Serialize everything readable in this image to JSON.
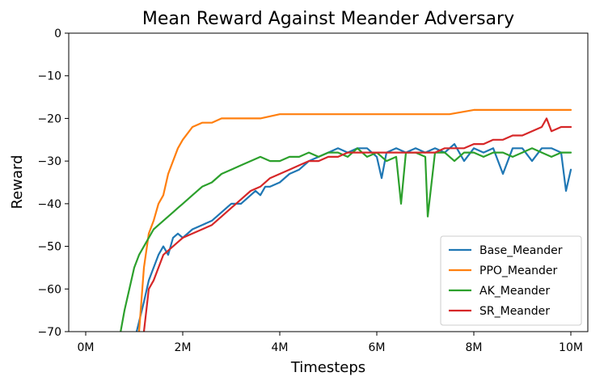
{
  "chart_data": {
    "type": "line",
    "title": "Mean Reward Against Meander Adversary",
    "xlabel": "Timesteps",
    "ylabel": "Reward",
    "xlim": [
      -0.35,
      10.35
    ],
    "ylim": [
      -70,
      0
    ],
    "x_ticks": [
      {
        "value": 0,
        "label": "0M"
      },
      {
        "value": 2,
        "label": "2M"
      },
      {
        "value": 4,
        "label": "4M"
      },
      {
        "value": 6,
        "label": "6M"
      },
      {
        "value": 8,
        "label": "8M"
      },
      {
        "value": 10,
        "label": "10M"
      }
    ],
    "y_ticks": [
      {
        "value": 0,
        "label": "0"
      },
      {
        "value": -10,
        "label": "−10"
      },
      {
        "value": -20,
        "label": "−20"
      },
      {
        "value": -30,
        "label": "−30"
      },
      {
        "value": -40,
        "label": "−40"
      },
      {
        "value": -50,
        "label": "−50"
      },
      {
        "value": -60,
        "label": "−60"
      },
      {
        "value": -70,
        "label": "−70"
      }
    ],
    "grid": false,
    "legend_position": "lower right",
    "series": [
      {
        "name": "Base_Meander",
        "color": "#1f77b4",
        "x": [
          1.05,
          1.2,
          1.3,
          1.4,
          1.5,
          1.6,
          1.7,
          1.8,
          1.9,
          2.0,
          2.2,
          2.4,
          2.6,
          2.8,
          3.0,
          3.2,
          3.4,
          3.5,
          3.6,
          3.7,
          3.8,
          4.0,
          4.2,
          4.4,
          4.6,
          4.8,
          5.0,
          5.2,
          5.4,
          5.6,
          5.8,
          6.0,
          6.1,
          6.2,
          6.4,
          6.6,
          6.8,
          7.0,
          7.2,
          7.4,
          7.6,
          7.8,
          8.0,
          8.2,
          8.4,
          8.6,
          8.8,
          9.0,
          9.2,
          9.4,
          9.6,
          9.8,
          9.9,
          10.0
        ],
        "y": [
          -70,
          -63,
          -58,
          -55,
          -52,
          -50,
          -52,
          -48,
          -47,
          -48,
          -46,
          -45,
          -44,
          -42,
          -40,
          -40,
          -38,
          -37,
          -38,
          -36,
          -36,
          -35,
          -33,
          -32,
          -30,
          -29,
          -28,
          -27,
          -28,
          -27,
          -27,
          -29,
          -34,
          -28,
          -27,
          -28,
          -27,
          -28,
          -27,
          -28,
          -26,
          -30,
          -27,
          -28,
          -27,
          -33,
          -27,
          -27,
          -30,
          -27,
          -27,
          -28,
          -37,
          -32
        ]
      },
      {
        "name": "PPO_Meander",
        "color": "#ff7f0e",
        "x": [
          1.1,
          1.2,
          1.3,
          1.4,
          1.5,
          1.6,
          1.7,
          1.8,
          1.9,
          2.0,
          2.2,
          2.4,
          2.6,
          2.8,
          3.0,
          3.3,
          3.6,
          4.0,
          4.5,
          5.0,
          5.5,
          6.0,
          6.5,
          7.0,
          7.5,
          8.0,
          8.5,
          9.0,
          9.5,
          10.0
        ],
        "y": [
          -70,
          -55,
          -47,
          -44,
          -40,
          -38,
          -33,
          -30,
          -27,
          -25,
          -22,
          -21,
          -21,
          -20,
          -20,
          -20,
          -20,
          -19,
          -19,
          -19,
          -19,
          -19,
          -19,
          -19,
          -19,
          -18,
          -18,
          -18,
          -18,
          -18
        ]
      },
      {
        "name": "AK_Meander",
        "color": "#2ca02c",
        "x": [
          0.72,
          0.8,
          0.9,
          1.0,
          1.1,
          1.2,
          1.3,
          1.4,
          1.5,
          1.6,
          1.7,
          1.8,
          1.9,
          2.0,
          2.2,
          2.4,
          2.6,
          2.8,
          3.0,
          3.2,
          3.4,
          3.6,
          3.8,
          4.0,
          4.2,
          4.4,
          4.6,
          4.8,
          5.0,
          5.2,
          5.4,
          5.6,
          5.8,
          6.0,
          6.2,
          6.4,
          6.5,
          6.6,
          6.8,
          7.0,
          7.05,
          7.2,
          7.4,
          7.6,
          7.8,
          8.0,
          8.2,
          8.4,
          8.6,
          8.8,
          9.0,
          9.2,
          9.4,
          9.6,
          9.8,
          10.0
        ],
        "y": [
          -70,
          -65,
          -60,
          -55,
          -52,
          -50,
          -48,
          -46,
          -45,
          -44,
          -43,
          -42,
          -41,
          -40,
          -38,
          -36,
          -35,
          -33,
          -32,
          -31,
          -30,
          -29,
          -30,
          -30,
          -29,
          -29,
          -28,
          -29,
          -28,
          -28,
          -29,
          -27,
          -29,
          -28,
          -30,
          -29,
          -40,
          -28,
          -28,
          -29,
          -43,
          -28,
          -28,
          -30,
          -28,
          -28,
          -29,
          -28,
          -28,
          -29,
          -28,
          -27,
          -28,
          -29,
          -28,
          -28
        ]
      },
      {
        "name": "SR_Meander",
        "color": "#d62728",
        "x": [
          1.2,
          1.3,
          1.4,
          1.5,
          1.6,
          1.7,
          1.8,
          1.9,
          2.0,
          2.2,
          2.4,
          2.6,
          2.8,
          3.0,
          3.2,
          3.4,
          3.6,
          3.8,
          4.0,
          4.2,
          4.4,
          4.6,
          4.8,
          5.0,
          5.2,
          5.4,
          5.6,
          5.8,
          6.0,
          6.2,
          6.4,
          6.6,
          6.8,
          7.0,
          7.2,
          7.4,
          7.6,
          7.8,
          8.0,
          8.2,
          8.4,
          8.6,
          8.8,
          9.0,
          9.2,
          9.4,
          9.5,
          9.6,
          9.8,
          10.0
        ],
        "y": [
          -70,
          -60,
          -58,
          -55,
          -52,
          -51,
          -50,
          -49,
          -48,
          -47,
          -46,
          -45,
          -43,
          -41,
          -39,
          -37,
          -36,
          -34,
          -33,
          -32,
          -31,
          -30,
          -30,
          -29,
          -29,
          -28,
          -28,
          -28,
          -28,
          -28,
          -28,
          -28,
          -28,
          -28,
          -28,
          -27,
          -27,
          -27,
          -26,
          -26,
          -25,
          -25,
          -24,
          -24,
          -23,
          -22,
          -20,
          -23,
          -22,
          -22
        ]
      }
    ]
  }
}
